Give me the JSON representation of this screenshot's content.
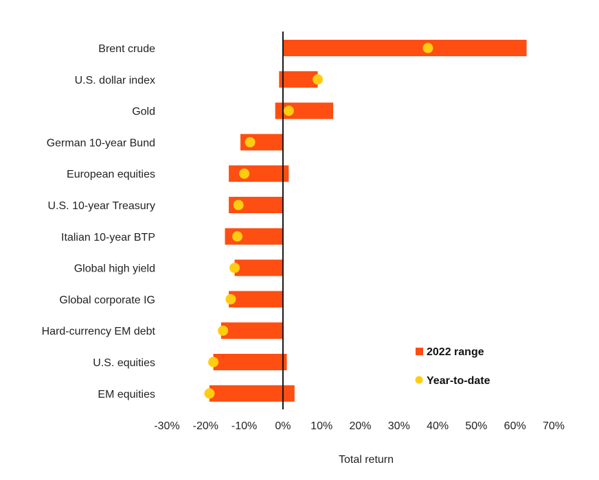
{
  "chart_data": {
    "type": "bar",
    "subtype": "range-with-marker",
    "categories": [
      "Brent crude",
      "U.S. dollar index",
      "Gold",
      "German 10-year Bund",
      "European equities",
      "U.S. 10-year Treasury",
      "Italian 10-year BTP",
      "Global high yield",
      "Global corporate IG",
      "Hard-currency EM debt",
      "U.S. equities",
      "EM equities"
    ],
    "series": [
      {
        "name": "2022 range",
        "kind": "range",
        "color": "#fe4e12",
        "values": [
          [
            0,
            63
          ],
          [
            -1,
            9
          ],
          [
            -2,
            13
          ],
          [
            -11,
            0
          ],
          [
            -14,
            1.5
          ],
          [
            -14,
            0
          ],
          [
            -15,
            0
          ],
          [
            -12.5,
            0
          ],
          [
            -14,
            0
          ],
          [
            -16,
            0
          ],
          [
            -18,
            1
          ],
          [
            -19,
            3
          ]
        ]
      },
      {
        "name": "Year-to-date",
        "kind": "marker",
        "color": "#ffcc11",
        "values": [
          37.5,
          9,
          1.5,
          -8.5,
          -10,
          -11.5,
          -11.8,
          -12.5,
          -13.5,
          -15.5,
          -18,
          -19
        ]
      }
    ],
    "x_ticks": [
      "-30%",
      "-20%",
      "-10%",
      "0%",
      "10%",
      "20%",
      "30%",
      "40%",
      "50%",
      "60%",
      "70%"
    ],
    "xlim": [
      -30,
      70
    ],
    "xlabel": "Total return",
    "ylabel": "",
    "title": "",
    "grid": false,
    "legend": {
      "position": "bottom-right",
      "items": [
        "2022 range",
        "Year-to-date"
      ]
    }
  }
}
